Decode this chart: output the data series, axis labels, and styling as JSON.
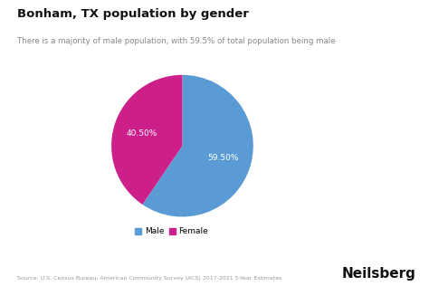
{
  "title": "Bonham, TX population by gender",
  "subtitle": "There is a majority of male population, with 59.5% of total population being male",
  "slices": [
    59.5,
    40.5
  ],
  "labels": [
    "Male",
    "Female"
  ],
  "colors": [
    "#5b9bd5",
    "#cc1f8a"
  ],
  "autopct_labels": [
    "59.50%",
    "40.50%"
  ],
  "legend_labels": [
    "Male",
    "Female"
  ],
  "source_text": "Source: U.S. Census Bureau, American Community Survey (ACS) 2017-2021 5-Year Estimates",
  "brand_text": "Neilsberg",
  "background_color": "#ffffff",
  "label_color": "#ffffff",
  "startangle": 90
}
